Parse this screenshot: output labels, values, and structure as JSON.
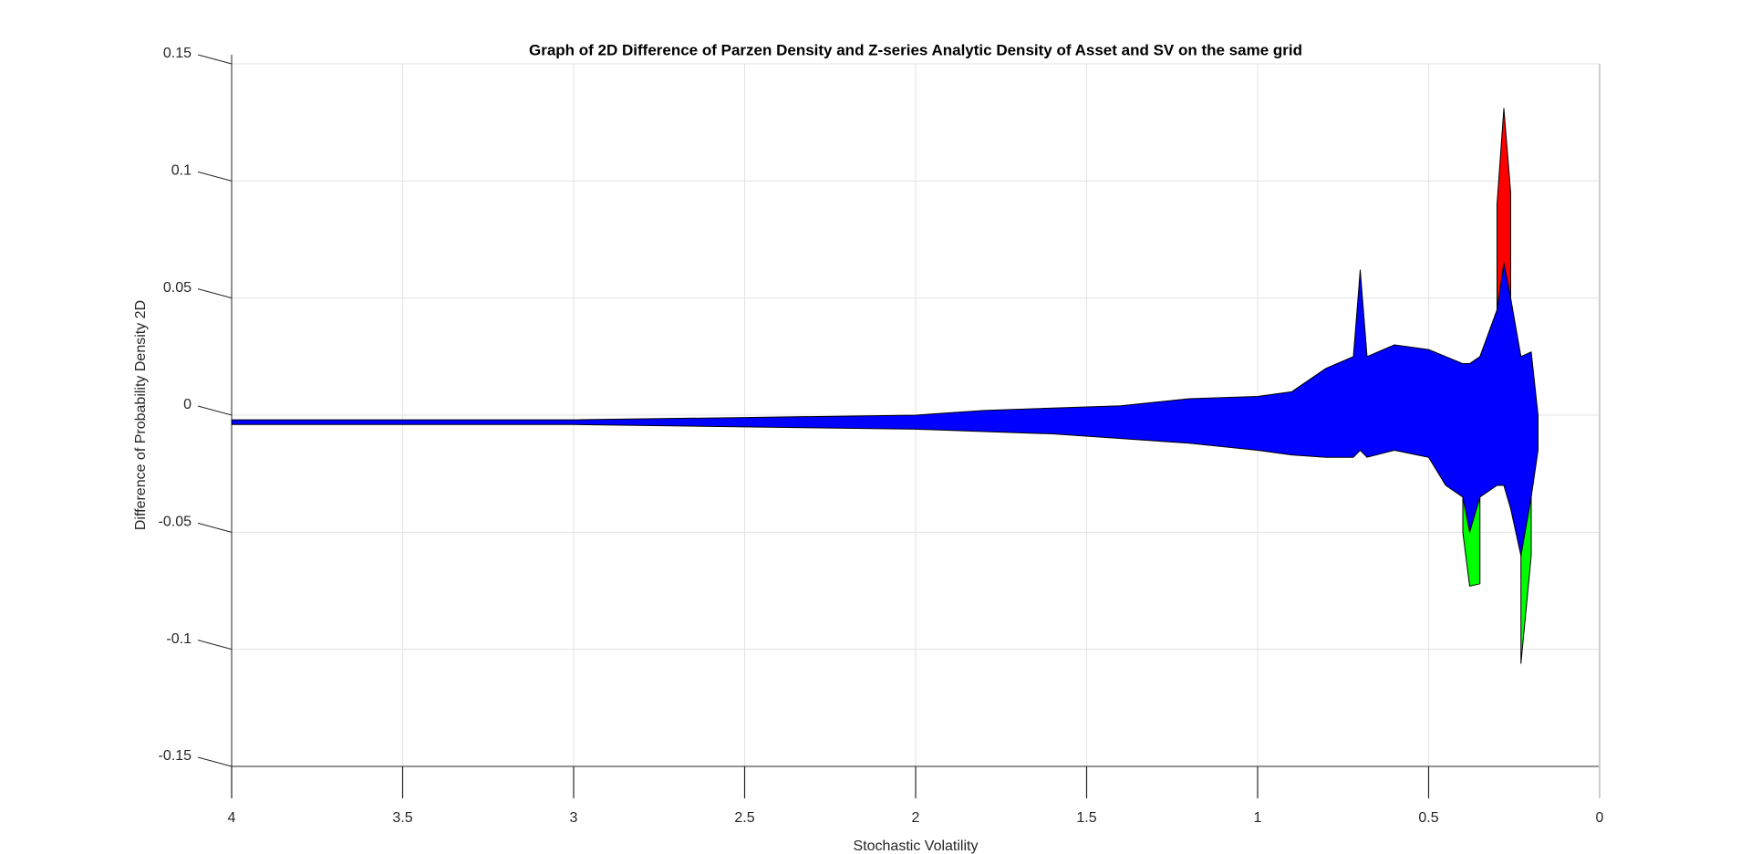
{
  "chart_data": {
    "type": "band",
    "title": "Graph of 2D Difference of Parzen Density and Z-series Analytic Density of Asset and SV on the same grid",
    "x_label": "Stochastic Volatility",
    "y_label": "Difference of Probability Density 2D",
    "x": [
      4,
      3.5,
      3,
      2.5,
      2,
      1.8,
      1.6,
      1.4,
      1.2,
      1.0,
      0.9,
      0.8,
      0.72,
      0.7,
      0.68,
      0.6,
      0.5,
      0.45,
      0.4,
      0.38,
      0.35,
      0.3,
      0.28,
      0.26,
      0.23,
      0.2,
      0.18
    ],
    "series": [
      {
        "color": "#ff0000",
        "upper": [
          null,
          null,
          null,
          null,
          null,
          null,
          null,
          null,
          null,
          null,
          null,
          null,
          null,
          null,
          null,
          null,
          null,
          null,
          null,
          null,
          null,
          0.09,
          0.131,
          0.095,
          null,
          null,
          null
        ],
        "lower": [
          null,
          null,
          null,
          null,
          null,
          null,
          null,
          null,
          null,
          null,
          null,
          null,
          null,
          null,
          null,
          null,
          null,
          null,
          null,
          null,
          null,
          0.04,
          0.06,
          0.05,
          null,
          null,
          null
        ]
      },
      {
        "color": "#00ff00",
        "upper": [
          null,
          null,
          null,
          null,
          null,
          null,
          null,
          null,
          null,
          null,
          null,
          null,
          null,
          null,
          null,
          null,
          null,
          null,
          -0.03,
          -0.035,
          -0.03,
          null,
          null,
          null,
          -0.05,
          -0.03,
          null
        ],
        "lower": [
          null,
          null,
          null,
          null,
          null,
          null,
          null,
          null,
          null,
          null,
          null,
          null,
          null,
          null,
          null,
          null,
          null,
          null,
          -0.05,
          -0.073,
          -0.072,
          null,
          null,
          null,
          -0.106,
          -0.06,
          null
        ]
      },
      {
        "color": "#0000ff",
        "upper": [
          -0.002,
          -0.002,
          -0.002,
          -0.001,
          0.0,
          0.002,
          0.003,
          0.004,
          0.007,
          0.008,
          0.01,
          0.02,
          0.025,
          0.062,
          0.025,
          0.03,
          0.028,
          0.025,
          0.022,
          0.022,
          0.025,
          0.045,
          0.065,
          0.05,
          0.025,
          0.027,
          0.0
        ],
        "lower": [
          -0.004,
          -0.004,
          -0.004,
          -0.005,
          -0.006,
          -0.007,
          -0.008,
          -0.01,
          -0.012,
          -0.015,
          -0.017,
          -0.018,
          -0.018,
          -0.015,
          -0.018,
          -0.015,
          -0.018,
          -0.03,
          -0.035,
          -0.05,
          -0.035,
          -0.03,
          -0.03,
          -0.04,
          -0.06,
          -0.035,
          -0.015
        ]
      }
    ],
    "xlim": [
      4,
      0
    ],
    "ylim": [
      -0.15,
      0.15
    ],
    "xticks": [
      4,
      3.5,
      3,
      2.5,
      2,
      1.5,
      1,
      0.5,
      0
    ],
    "yticks": [
      -0.15,
      -0.1,
      -0.05,
      0,
      0.05,
      0.1,
      0.15
    ],
    "grid": true
  }
}
